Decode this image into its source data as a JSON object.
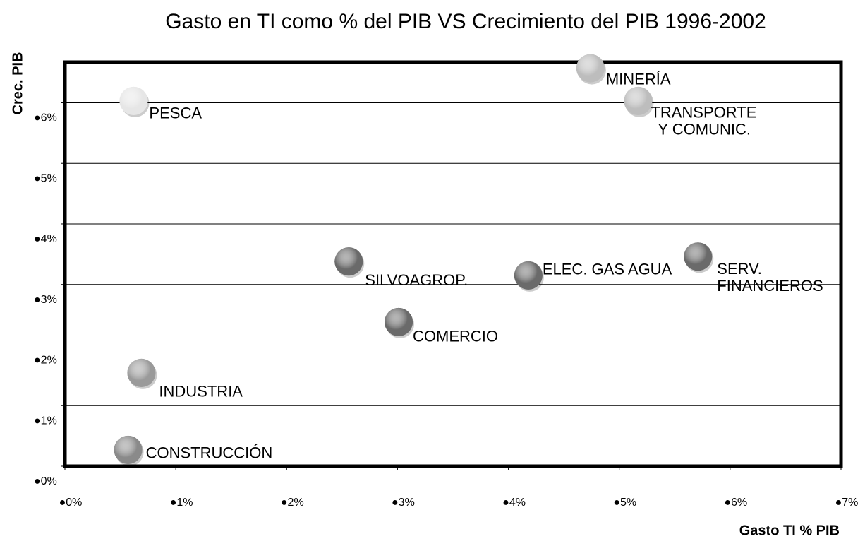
{
  "chart_data": {
    "type": "scatter",
    "title": "Gasto en TI como % del PIB VS Crecimiento del PIB 1996-2002",
    "x_label": "Gasto TI % PIB",
    "y_label": "Crec. PIB",
    "labels": [
      [
        "PESCA"
      ],
      [
        "MINERÍA"
      ],
      [
        "TRANSPORTE",
        "Y COMUNIC."
      ],
      [
        "SILVOAGROP."
      ],
      [
        "ELEC. GAS AGUA"
      ],
      [
        "SERV.",
        "FINANCIEROS"
      ],
      [
        "COMERCIO"
      ],
      [
        "INDUSTRIA"
      ],
      [
        "CONSTRUCCIÓN"
      ]
    ],
    "x": [
      0.62,
      4.74,
      5.17,
      2.56,
      4.18,
      5.71,
      3.01,
      0.69,
      0.57
    ],
    "y": [
      6.03,
      6.57,
      6.03,
      3.38,
      3.15,
      3.46,
      2.38,
      1.54,
      0.27
    ],
    "colors": [
      "#e6e6e6",
      "#bdbdbd",
      "#bdbdbd",
      "#6a6a6a",
      "#6a6a6a",
      "#6a6a6a",
      "#6a6a6a",
      "#9a9a9a",
      "#8a8a8a"
    ],
    "xlim": [
      0,
      7
    ],
    "ylim": [
      0,
      6.67
    ],
    "xticks": [
      {
        "value": 0,
        "label": "●0%"
      },
      {
        "value": 1,
        "label": "●1%"
      },
      {
        "value": 2,
        "label": "●2%"
      },
      {
        "value": 3,
        "label": "●3%"
      },
      {
        "value": 4,
        "label": "●4%"
      },
      {
        "value": 5,
        "label": "●5%"
      },
      {
        "value": 6,
        "label": "●6%"
      },
      {
        "value": 7,
        "label": "●7%"
      }
    ],
    "yticks": [
      {
        "value": 0,
        "label": "●0%"
      },
      {
        "value": 1,
        "label": "●1%"
      },
      {
        "value": 2,
        "label": "●2%"
      },
      {
        "value": 3,
        "label": "●3%"
      },
      {
        "value": 4,
        "label": "●4%"
      },
      {
        "value": 5,
        "label": "●5%"
      },
      {
        "value": 6,
        "label": "●6%"
      }
    ],
    "grid": true
  }
}
